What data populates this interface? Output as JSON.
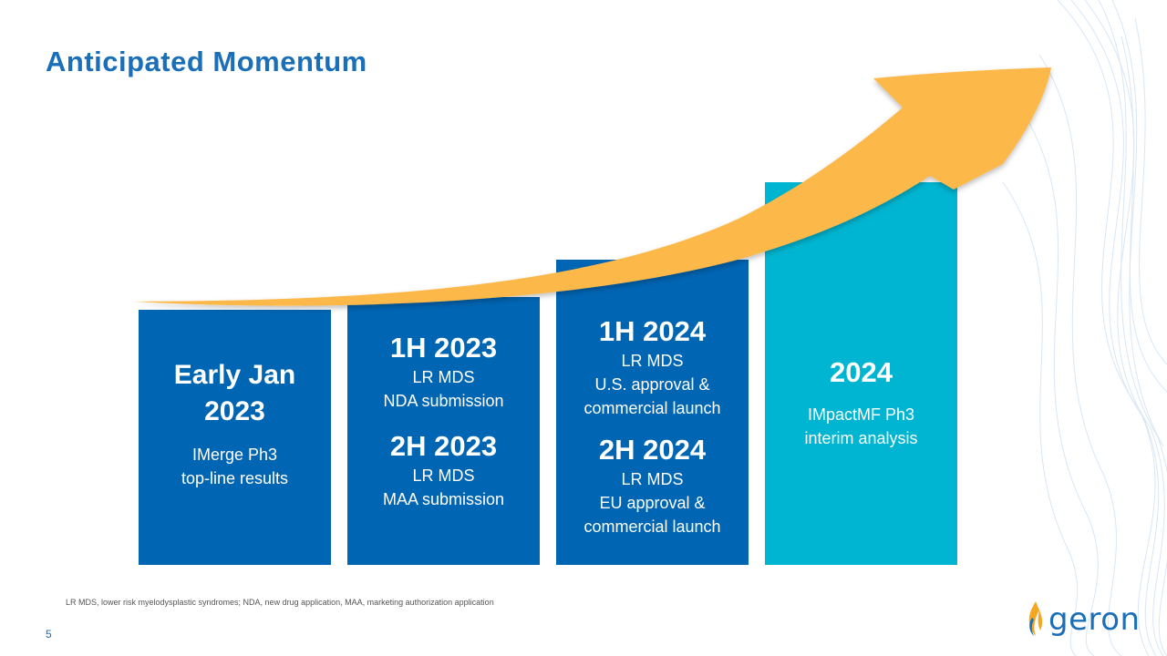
{
  "slide": {
    "title": "Anticipated Momentum",
    "page_number": "5",
    "footnote": "LR MDS, lower risk myelodysplastic syndromes; NDA, new drug application, MAA, marketing authorization application",
    "logo_text": "geron"
  },
  "colors": {
    "title": "#1a6fb8",
    "column_blue": "#0065b3",
    "column_teal": "#00b5d1",
    "arrow": "#fcb84a"
  },
  "columns": [
    {
      "heading_line1": "Early Jan",
      "heading_line2": "2023",
      "sub_line1": "IMerge Ph3",
      "sub_line2": "top-line results"
    },
    {
      "top_heading": "1H 2023",
      "top_line1": "LR MDS",
      "top_line2": "NDA submission",
      "bottom_heading": "2H 2023",
      "bottom_line1": "LR MDS",
      "bottom_line2": "MAA submission"
    },
    {
      "top_heading": "1H 2024",
      "top_line1": "LR MDS",
      "top_line2": "U.S. approval &",
      "top_line3": "commercial launch",
      "bottom_heading": "2H 2024",
      "bottom_line1": "LR MDS",
      "bottom_line2": "EU approval &",
      "bottom_line3": "commercial launch"
    },
    {
      "heading": "2024",
      "sub_line1": "IMpactMF Ph3",
      "sub_line2": "interim analysis"
    }
  ],
  "icons": {
    "arrow": "growth-arrow",
    "logo": "flame-icon",
    "background": "wave-lines"
  }
}
